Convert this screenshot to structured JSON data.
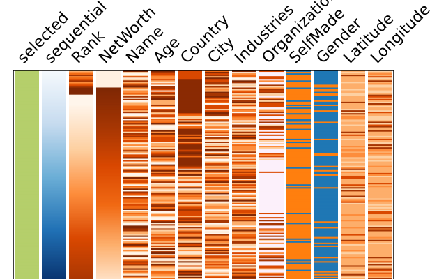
{
  "chart_data": {
    "type": "heatmap",
    "columns": [
      {
        "label": "selected",
        "kind": "flat",
        "color": "#b5cf6b"
      },
      {
        "label": "sequential",
        "kind": "gradient",
        "stops": [
          "#f5f9fd",
          "#c6dbef",
          "#6baed6",
          "#2171b5",
          "#08306b"
        ]
      },
      {
        "label": "Rank",
        "kind": "rank"
      },
      {
        "label": "NetWorth",
        "kind": "networth"
      },
      {
        "label": "Name",
        "kind": "categorical",
        "seed": 11
      },
      {
        "label": "Age",
        "kind": "categorical",
        "seed": 23
      },
      {
        "label": "Country",
        "kind": "country"
      },
      {
        "label": "City",
        "kind": "categorical",
        "seed": 37
      },
      {
        "label": "Industries",
        "kind": "categorical",
        "seed": 41
      },
      {
        "label": "Organization",
        "kind": "organization"
      },
      {
        "label": "SelfMade",
        "kind": "binary",
        "a": "#ff7f0e",
        "b": "#1f77b4",
        "seed": 5
      },
      {
        "label": "Gender",
        "kind": "binary",
        "a": "#1f77b4",
        "b": "#ff7f0e",
        "seed": 9
      },
      {
        "label": "Latitude",
        "kind": "pale",
        "seed": 53
      },
      {
        "label": "Longitude",
        "kind": "pale",
        "seed": 61
      }
    ],
    "orange_palette": [
      "#fff5eb",
      "#fee6ce",
      "#fdd0a2",
      "#fdae6b",
      "#fd8d3c",
      "#f16913",
      "#d94801",
      "#a63603",
      "#7f2704"
    ],
    "organization_colors": [
      "#fcf0fb",
      "#fcf0fb",
      "#fcf0fb",
      "#fdd0a2",
      "#fd8d3c",
      "#d94801",
      "#a63603"
    ],
    "rows": 150
  }
}
